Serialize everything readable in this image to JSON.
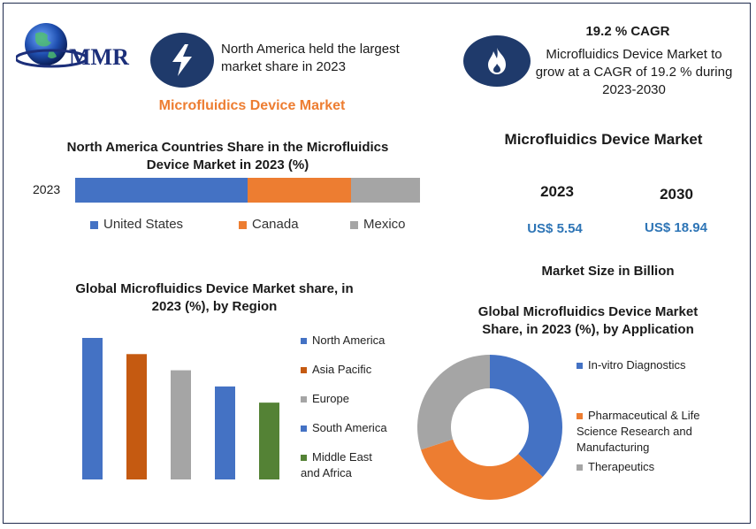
{
  "logo": {
    "text": "MMR"
  },
  "header": {
    "highlight_text": "North America held the largest market share in 2023",
    "market_title": "Microfluidics Device Market",
    "cagr_title": "19.2 % CAGR",
    "cagr_text": "Microfluidics Device Market to grow at a CAGR of 19.2 % during 2023-2030"
  },
  "market_size": {
    "title": "Microfluidics Device Market",
    "year1": "2023",
    "year2": "2030",
    "value1": "US$ 5.54",
    "value2": "US$ 18.94",
    "unit_label": "Market Size in Billion"
  },
  "colors": {
    "blue": "#4472c4",
    "orange": "#ed7d31",
    "gray": "#a5a5a5",
    "rust": "#c55a11",
    "green": "#548235",
    "navy": "#1f3a6b"
  },
  "chart_data": [
    {
      "type": "bar",
      "orientation": "horizontal-stacked",
      "title": "North America Countries Share in the  Microfluidics Device Market  in 2023 (%)",
      "categories": [
        "2023"
      ],
      "series": [
        {
          "name": "United States",
          "values": [
            50
          ],
          "color": "#4472c4"
        },
        {
          "name": "Canada",
          "values": [
            30
          ],
          "color": "#ed7d31"
        },
        {
          "name": "Mexico",
          "values": [
            20
          ],
          "color": "#a5a5a5"
        }
      ],
      "legend": "bottom"
    },
    {
      "type": "bar",
      "title": "Global Microfluidics Device Market share, in 2023 (%), by Region",
      "categories": [
        "North America",
        "Asia Pacific",
        "Europe",
        "South America",
        "Middle East and Africa"
      ],
      "values": [
        35,
        31,
        27,
        23,
        19
      ],
      "colors": [
        "#4472c4",
        "#c55a11",
        "#a5a5a5",
        "#4472c4",
        "#548235"
      ],
      "legend": "right"
    },
    {
      "type": "pie",
      "variant": "donut",
      "title": "Global Microfluidics Device Market Share, in 2023 (%), by Application",
      "labels": [
        "In-vitro Diagnostics",
        "Pharmaceutical & Life Science Research and Manufacturing",
        "Therapeutics"
      ],
      "values": [
        37,
        33,
        30
      ],
      "colors": [
        "#4472c4",
        "#ed7d31",
        "#a5a5a5"
      ],
      "legend": "right"
    }
  ]
}
